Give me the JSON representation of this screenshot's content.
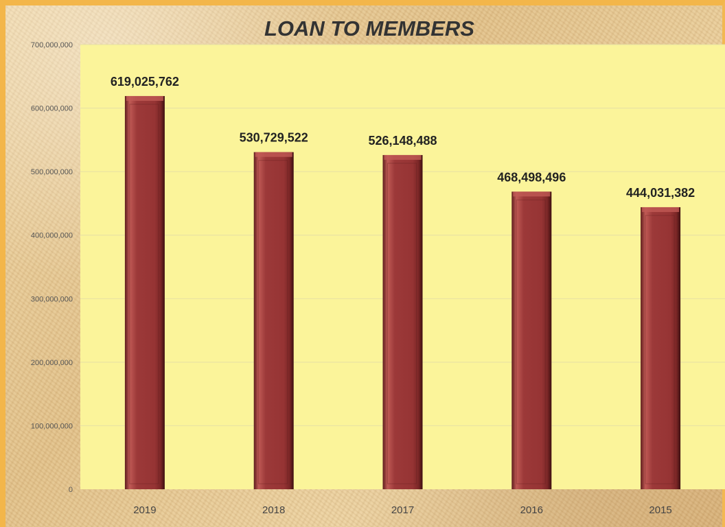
{
  "colors": {
    "plot_background": "#fbf49a",
    "bar_fill": "#9c3939",
    "bar_highlight": "#c05a55",
    "bar_shadow": "#5e1c1c",
    "gridline": "#e6dfa4",
    "title": "#333333"
  },
  "chart_data": {
    "type": "bar",
    "title": "LOAN TO MEMBERS",
    "xlabel": "",
    "ylabel": "",
    "categories": [
      "2019",
      "2018",
      "2017",
      "2016",
      "2015"
    ],
    "values": [
      619025762,
      530729522,
      526148488,
      468498496,
      444031382
    ],
    "data_labels": [
      "619,025,762",
      "530,729,522",
      "526,148,488",
      "468,498,496",
      "444,031,382"
    ],
    "ylim": [
      0,
      700000000
    ],
    "y_ticks": [
      0,
      100000000,
      200000000,
      300000000,
      400000000,
      500000000,
      600000000,
      700000000
    ],
    "y_tick_labels": [
      "0",
      "100,000,000",
      "200,000,000",
      "300,000,000",
      "400,000,000",
      "500,000,000",
      "600,000,000",
      "700,000,000"
    ],
    "grid": true,
    "legend": "none"
  }
}
